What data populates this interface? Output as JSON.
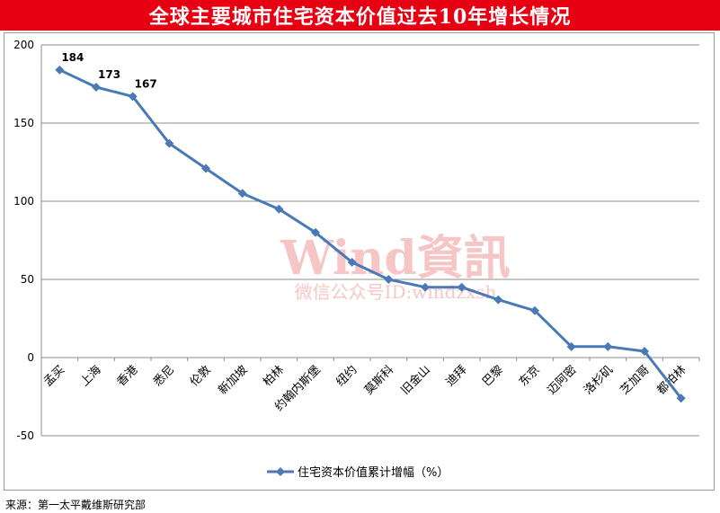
{
  "title": "全球主要城市住宅资本价值过去10年增长情况",
  "source": "来源：第一太平戴维斯研究部",
  "watermark": {
    "line1": "Wind資訊",
    "line2": "微信公众号ID:windzxsh",
    "color": "#f3b4b4"
  },
  "colors": {
    "title_bg": "#e60012",
    "series": "#4a7ab5",
    "grid": "#8c8c8c"
  },
  "chart_data": {
    "type": "line",
    "title": "全球主要城市住宅资本价值过去10年增长情况",
    "categories": [
      "孟买",
      "上海",
      "香港",
      "悉尼",
      "伦敦",
      "新加坡",
      "柏林",
      "约翰内斯堡",
      "纽约",
      "莫斯科",
      "旧金山",
      "迪拜",
      "巴黎",
      "东京",
      "迈阿密",
      "洛杉矶",
      "芝加哥",
      "都柏林"
    ],
    "series": [
      {
        "name": "住宅资本价值累计增幅（%）",
        "values": [
          184,
          173,
          167,
          137,
          121,
          105,
          95,
          80,
          61,
          50,
          45,
          45,
          37,
          30,
          7,
          7,
          4,
          -26
        ]
      }
    ],
    "data_labels": [
      {
        "index": 0,
        "text": "184"
      },
      {
        "index": 1,
        "text": "173"
      },
      {
        "index": 2,
        "text": "167"
      }
    ],
    "ylim": [
      -50,
      200
    ],
    "yticks": [
      -50,
      0,
      50,
      100,
      150,
      200
    ],
    "grid": true,
    "legend_position": "bottom"
  }
}
